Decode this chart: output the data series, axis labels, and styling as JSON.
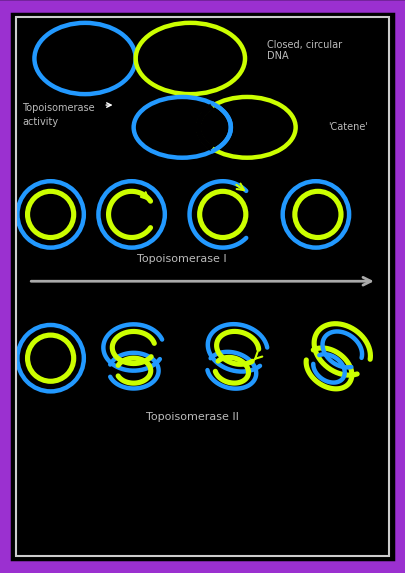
{
  "bg_color": "#000000",
  "border_outer_color": "#9B30D0",
  "border_inner_color": "#CCCCCC",
  "blue_color": "#2299FF",
  "green_color": "#CCFF00",
  "text_color": "#BBBBBB",
  "lw": 3.2,
  "title1": "Topoisomerase I",
  "title2": "Topoisomerase II",
  "label_closed": "Closed, circular\nDNA",
  "label_catene": "'Catene'",
  "label_topo_activity": "Topoisomerase\nactivity"
}
